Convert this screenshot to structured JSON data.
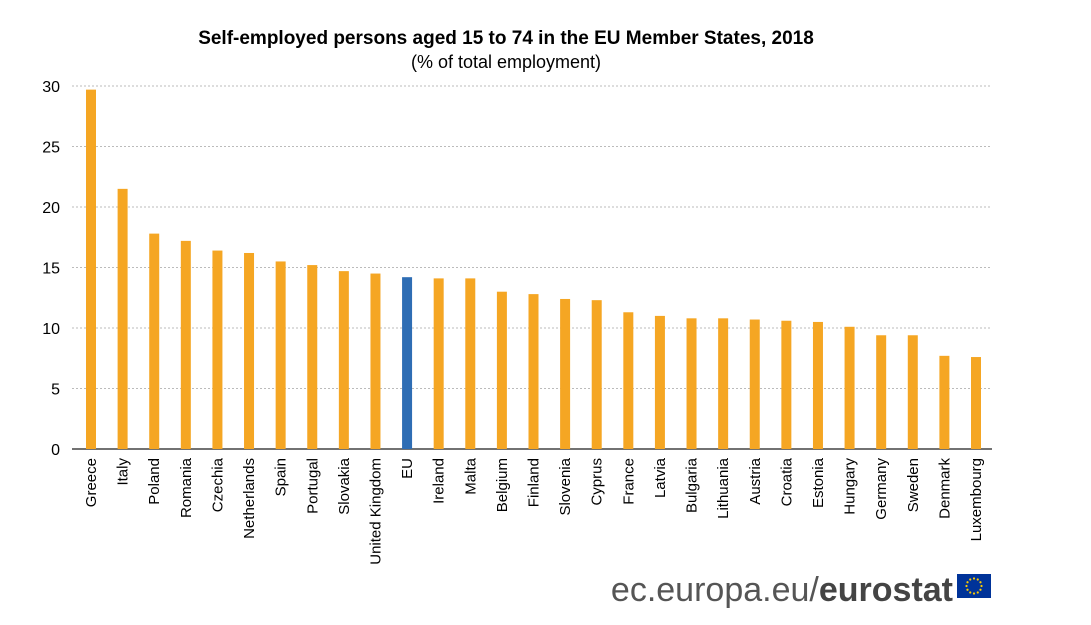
{
  "chart_data": {
    "type": "bar",
    "title": "Self-employed persons aged 15 to 74 in the EU Member States, 2018",
    "subtitle": "(% of total employment)",
    "xlabel": "",
    "ylabel": "",
    "ylim": [
      0,
      30
    ],
    "yticks": [
      0,
      5,
      10,
      15,
      20,
      25,
      30
    ],
    "grid": true,
    "categories": [
      "Greece",
      "Italy",
      "Poland",
      "Romania",
      "Czechia",
      "Netherlands",
      "Spain",
      "Portugal",
      "Slovakia",
      "United Kingdom",
      "EU",
      "Ireland",
      "Malta",
      "Belgium",
      "Finland",
      "Slovenia",
      "Cyprus",
      "France",
      "Latvia",
      "Bulgaria",
      "Lithuania",
      "Austria",
      "Croatia",
      "Estonia",
      "Hungary",
      "Germany",
      "Sweden",
      "Denmark",
      "Luxembourg"
    ],
    "values": [
      29.7,
      21.5,
      17.8,
      17.2,
      16.4,
      16.2,
      15.5,
      15.2,
      14.7,
      14.5,
      14.2,
      14.1,
      14.1,
      13.0,
      12.8,
      12.4,
      12.3,
      11.3,
      11.0,
      10.8,
      10.8,
      10.7,
      10.6,
      10.5,
      10.1,
      9.4,
      9.4,
      7.7,
      7.6
    ],
    "highlight": "EU",
    "colors": {
      "bar": "#F5A623",
      "highlight": "#2E6DB4",
      "grid": "#BBBBBB"
    }
  },
  "logo": {
    "prefix": "ec.europa.eu/",
    "brand": "eurostat",
    "flag_color": "#003399",
    "star_color": "#FFCC00"
  }
}
